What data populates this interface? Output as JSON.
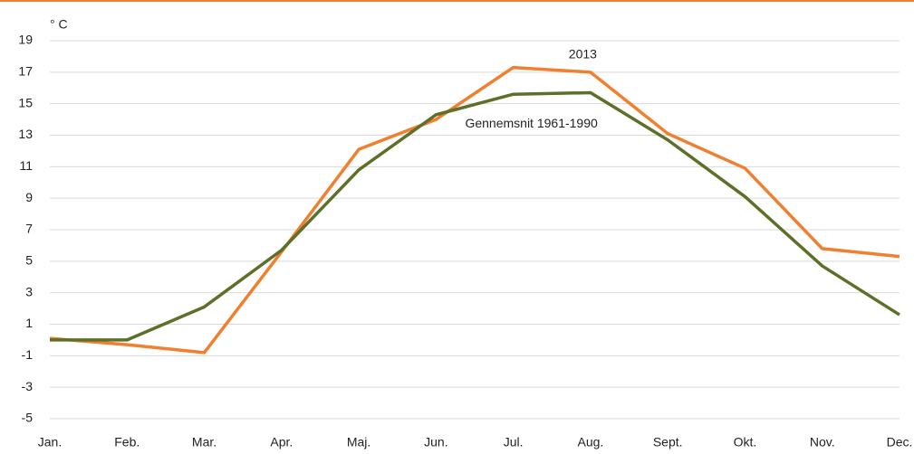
{
  "chart_data": {
    "type": "line",
    "y_unit": "° C",
    "categories": [
      "Jan.",
      "Feb.",
      "Mar.",
      "Apr.",
      "Maj.",
      "Jun.",
      "Jul.",
      "Aug.",
      "Sept.",
      "Okt.",
      "Nov.",
      "Dec."
    ],
    "series": [
      {
        "name": "2013",
        "color": "#f07f2f",
        "values": [
          0.1,
          -0.3,
          -0.8,
          5.6,
          12.1,
          14.0,
          17.3,
          17.0,
          13.1,
          10.9,
          5.8,
          5.3
        ]
      },
      {
        "name": "Gennemsnit 1961-1990",
        "color": "#5c7029",
        "values": [
          0.0,
          0.0,
          2.1,
          5.7,
          10.8,
          14.3,
          15.6,
          15.7,
          12.7,
          9.1,
          4.7,
          1.6
        ]
      }
    ],
    "ylim": [
      -5,
      19
    ],
    "yticks": [
      -5,
      -3,
      -1,
      1,
      3,
      5,
      7,
      9,
      11,
      13,
      15,
      17,
      19
    ],
    "grid": true
  }
}
